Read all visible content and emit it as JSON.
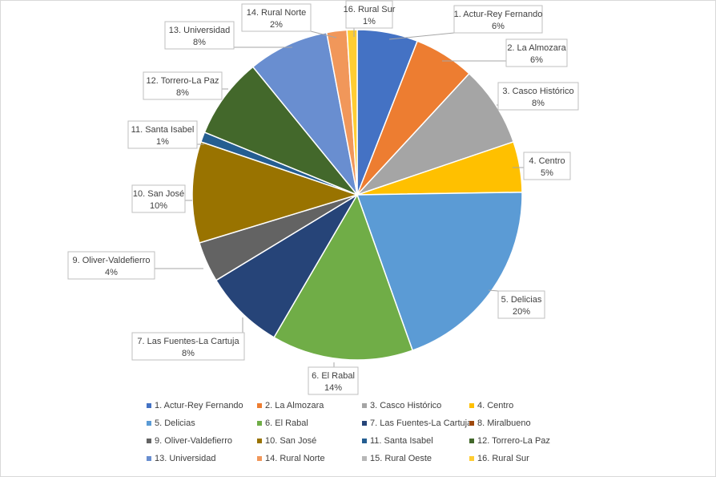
{
  "chart_data": {
    "type": "pie",
    "title": "",
    "categories": [
      "1. Actur-Rey Fernando",
      "2. La Almozara",
      "3. Casco Histórico",
      "4. Centro",
      "5. Delicias",
      "6. El Rabal",
      "7. Las Fuentes-La Cartuja",
      "8. Miralbueno",
      "9. Oliver-Valdefierro",
      "10. San José",
      "11. Santa Isabel",
      "12. Torrero-La Paz",
      "13. Universidad",
      "14. Rural Norte",
      "15. Rural Oeste",
      "16. Rural Sur"
    ],
    "values": [
      6,
      6,
      8,
      5,
      20,
      14,
      8,
      0,
      4,
      10,
      1,
      8,
      8,
      2,
      0,
      1
    ],
    "value_labels": [
      "6%",
      "6%",
      "8%",
      "5%",
      "20%",
      "14%",
      "8%",
      "",
      "4%",
      "10%",
      "1%",
      "8%",
      "8%",
      "2%",
      "",
      "1%"
    ],
    "colors": [
      "#4472c4",
      "#ed7d31",
      "#a5a5a5",
      "#ffc000",
      "#5b9bd5",
      "#70ad47",
      "#264478",
      "#9e480e",
      "#636363",
      "#997300",
      "#255e91",
      "#43682b",
      "#698ed0",
      "#f1975a",
      "#b7b7b7",
      "#ffcd33"
    ],
    "legend_position": "bottom"
  }
}
